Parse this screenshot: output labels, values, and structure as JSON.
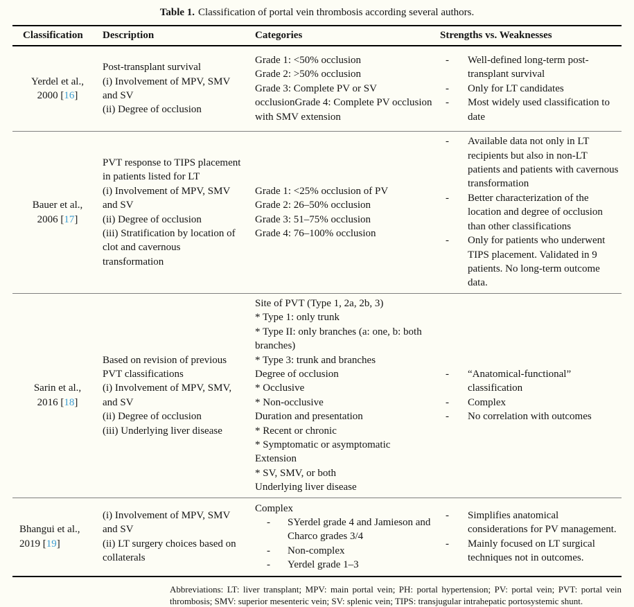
{
  "caption": {
    "label": "Table 1.",
    "text": "Classification of portal vein thrombosis according several authors."
  },
  "header": {
    "classification": "Classification",
    "description": "Description",
    "categories": "Categories",
    "strengths": "Strengths vs. Weaknesses"
  },
  "bullets": {
    "dash": "-"
  },
  "rows": [
    {
      "author": "Yerdel et al.,",
      "cite_pre": "2000 [",
      "ref": "16",
      "cite_post": "]",
      "description": "Post-transplant survival\n(i) Involvement of MPV, SMV and SV\n(ii) Degree of occlusion",
      "categories": "Grade 1: <50% occlusion\nGrade 2: >50% occlusion\nGrade 3: Complete PV or SV occlusionGrade 4: Complete PV occlusion with SMV extension",
      "strengths": [
        "Well-defined long-term post-transplant survival",
        "Only for LT candidates",
        "Most widely used classification to date"
      ]
    },
    {
      "author": "Bauer et al.,",
      "cite_pre": "2006 [",
      "ref": "17",
      "cite_post": "]",
      "description": "PVT response to TIPS placement in patients listed for LT\n(i) Involvement of MPV, SMV and SV\n(ii) Degree of occlusion\n(iii) Stratification by location of clot and cavernous transformation",
      "categories": "Grade 1: <25% occlusion of PV\nGrade 2: 26–50% occlusion\nGrade 3: 51–75% occlusion\nGrade 4: 76–100% occlusion",
      "strengths": [
        "Available data not only in LT recipients but also in non-LT patients and patients with cavernous transformation",
        "Better characterization of the location and degree of occlusion than other classifications",
        "Only for patients who underwent TIPS placement. Validated in 9 patients. No long-term outcome data."
      ]
    },
    {
      "author": "Sarin et al.,",
      "cite_pre": "2016 [",
      "ref": "18",
      "cite_post": "]",
      "description": "Based on revision of previous PVT classifications\n(i) Involvement of MPV, SMV, and SV\n(ii) Degree of occlusion\n(iii) Underlying liver disease",
      "categories": "Site of PVT (Type 1, 2a, 2b, 3)\n* Type 1: only trunk\n* Type II: only branches (a: one, b: both branches)\n* Type 3: trunk and branches\nDegree of occlusion\n* Occlusive\n* Non-occlusive\nDuration and presentation\n* Recent or chronic\n* Symptomatic or asymptomatic\nExtension\n* SV, SMV, or both\nUnderlying liver disease",
      "strengths": [
        "“Anatomical-functional” classification",
        "Complex",
        "No correlation with outcomes"
      ]
    },
    {
      "author": "Bhangui et al.,",
      "cite_pre": "2019 [",
      "ref": "19",
      "cite_post": "]",
      "description": "(i) Involvement of MPV, SMV and SV\n(ii) LT surgery choices based on collaterals",
      "categories_heading": "Complex",
      "categories_items": [
        "SYerdel grade 4 and Jamieson and Charco grades 3/4",
        "Non-complex",
        "Yerdel grade 1–3"
      ],
      "strengths": [
        "Simplifies anatomical considerations for PV management.",
        "Mainly focused on LT surgical techniques not in outcomes."
      ]
    }
  ],
  "footnote": "Abbreviations: LT: liver transplant; MPV: main portal vein; PH: portal hypertension; PV: portal vein; PVT: portal vein thrombosis; SMV: superior mesenteric vein; SV: splenic vein; TIPS: transjugular intrahepatic portosystemic shunt.",
  "colors": {
    "background": "#fdfdf5",
    "text": "#141414",
    "reference_link": "#3c9bd1",
    "rule_black": "#000000",
    "rule_gray": "#7f7f7f"
  }
}
